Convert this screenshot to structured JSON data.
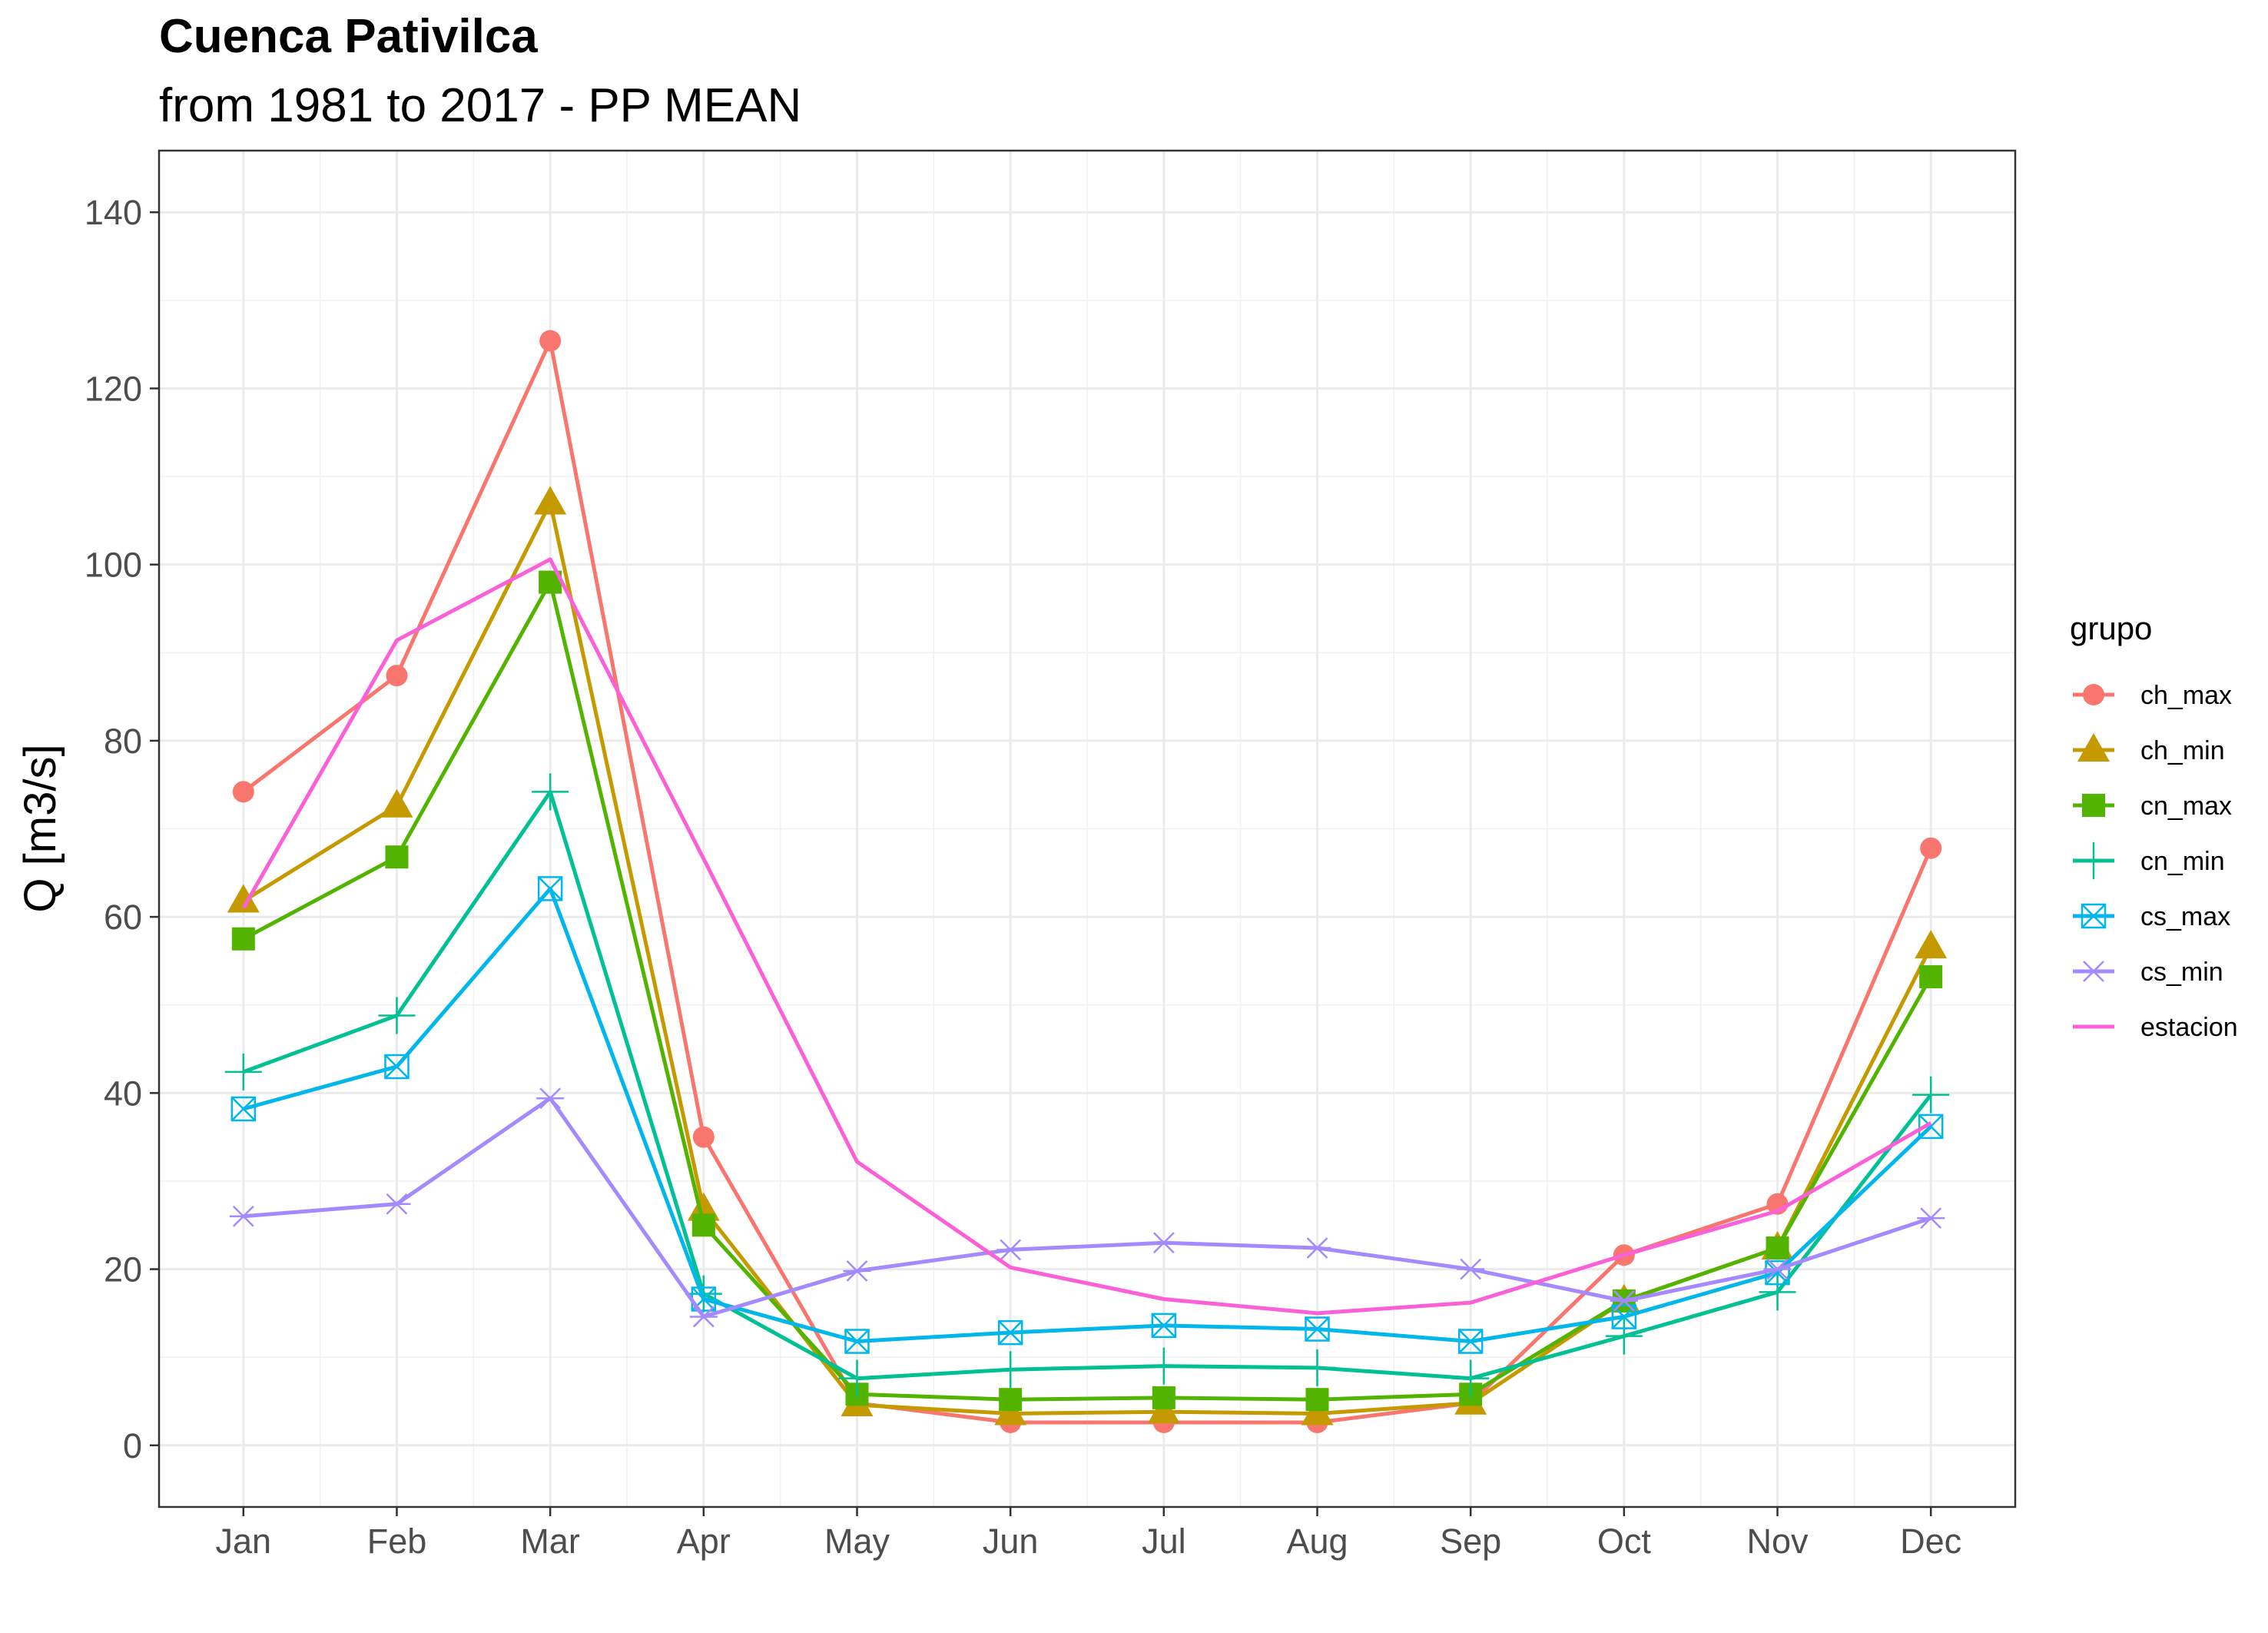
{
  "chart_data": {
    "type": "line",
    "title": "Cuenca Pativilca",
    "subtitle": "from 1981 to 2017 - PP MEAN",
    "xlabel": "",
    "ylabel": "Q [m3/s]",
    "categories": [
      "Jan",
      "Feb",
      "Mar",
      "Apr",
      "May",
      "Jun",
      "Jul",
      "Aug",
      "Sep",
      "Oct",
      "Nov",
      "Dec"
    ],
    "ylim": [
      -7,
      147
    ],
    "yticks": [
      0,
      20,
      40,
      60,
      80,
      100,
      120,
      140
    ],
    "grid": true,
    "legend": {
      "title": "grupo",
      "position": "right"
    },
    "series": [
      {
        "name": "ch_max",
        "color": "#F8766D",
        "marker": "circle",
        "values": [
          74.2,
          87.4,
          125.4,
          35.0,
          4.8,
          2.6,
          2.6,
          2.6,
          4.8,
          21.6,
          27.4,
          67.8
        ]
      },
      {
        "name": "ch_min",
        "color": "#C49A00",
        "marker": "triangle",
        "values": [
          61.8,
          72.6,
          107.0,
          26.8,
          4.6,
          3.6,
          3.8,
          3.6,
          4.8,
          16.4,
          22.4,
          56.6
        ]
      },
      {
        "name": "cn_max",
        "color": "#53B400",
        "marker": "square",
        "values": [
          57.5,
          66.8,
          98.0,
          25.0,
          5.8,
          5.2,
          5.4,
          5.2,
          5.8,
          16.4,
          22.4,
          53.2
        ]
      },
      {
        "name": "cn_min",
        "color": "#00C094",
        "marker": "plus",
        "values": [
          42.4,
          48.8,
          74.2,
          17.2,
          7.6,
          8.6,
          9.0,
          8.8,
          7.6,
          12.4,
          17.4,
          39.8
        ]
      },
      {
        "name": "cs_max",
        "color": "#00B6EB",
        "marker": "square-x",
        "values": [
          38.2,
          43.0,
          63.2,
          16.6,
          11.8,
          12.8,
          13.6,
          13.2,
          11.8,
          14.6,
          19.6,
          36.2
        ]
      },
      {
        "name": "cs_min",
        "color": "#A58AFF",
        "marker": "asterisk",
        "values": [
          26.0,
          27.4,
          39.4,
          14.6,
          19.8,
          22.2,
          23.0,
          22.4,
          20.0,
          16.4,
          20.0,
          25.8
        ]
      },
      {
        "name": "estacion",
        "color": "#FB61D7",
        "marker": "none",
        "values": [
          61.0,
          91.4,
          100.6,
          66.6,
          32.2,
          20.2,
          16.6,
          15.0,
          16.2,
          21.6,
          26.6,
          36.6
        ]
      }
    ]
  }
}
